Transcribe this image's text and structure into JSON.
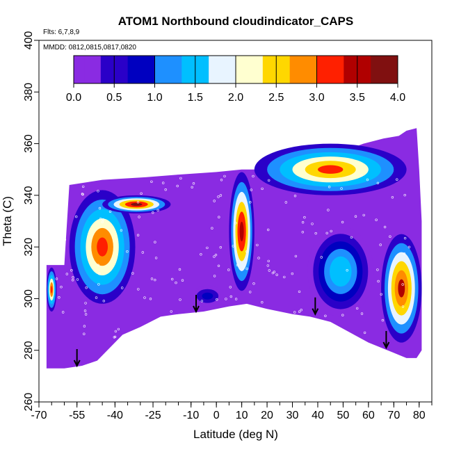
{
  "chart_data": {
    "type": "heatmap",
    "title": "ATOM1 Northbound cloudindicator_CAPS",
    "annotations": [
      "Flts: 6,7,8,9",
      "MMDD: 0812,0815,0817,0820"
    ],
    "xlabel": "Latitude (deg N)",
    "ylabel": "Theta (C)",
    "xlim": [
      -70,
      85
    ],
    "ylim": [
      260,
      400
    ],
    "x_ticks": [
      -70,
      -55,
      -40,
      -25,
      -10,
      0,
      10,
      20,
      30,
      40,
      50,
      60,
      70,
      80
    ],
    "x_tick_labels": [
      "-70",
      "-55",
      "-40",
      "-25",
      "-10",
      "0",
      "10",
      "20",
      "30",
      "40",
      "50",
      "60",
      "70",
      "80"
    ],
    "y_ticks": [
      260,
      280,
      300,
      320,
      340,
      360,
      380,
      400
    ],
    "y_tick_labels": [
      "260",
      "280",
      "300",
      "320",
      "340",
      "360",
      "380",
      "400"
    ],
    "colorbar": {
      "min": 0,
      "max": 4,
      "ticks": [
        0.0,
        0.5,
        1.0,
        1.5,
        2.0,
        2.5,
        3.0,
        3.5,
        4.0
      ],
      "tick_labels": [
        "0.0",
        "0.5",
        "1.0",
        "1.5",
        "2.0",
        "2.5",
        "3.0",
        "3.5",
        "4.0"
      ],
      "colors": [
        "#8a2be2",
        "#2a00c8",
        "#0000c0",
        "#1e90ff",
        "#00bfff",
        "#e8f4ff",
        "#ffffd0",
        "#ffd700",
        "#ff8c00",
        "#ff2000",
        "#b00000",
        "#801010"
      ]
    },
    "domain_outline": [
      [
        -67,
        273
      ],
      [
        -67,
        313
      ],
      [
        -60,
        313
      ],
      [
        -58,
        344
      ],
      [
        -45,
        346
      ],
      [
        -28,
        347
      ],
      [
        -15,
        348
      ],
      [
        0,
        349
      ],
      [
        10,
        350
      ],
      [
        20,
        350
      ],
      [
        30,
        350
      ],
      [
        40,
        353
      ],
      [
        50,
        357
      ],
      [
        58,
        360
      ],
      [
        66,
        362
      ],
      [
        72,
        363
      ],
      [
        75,
        365
      ],
      [
        79,
        366
      ],
      [
        80,
        350
      ],
      [
        81,
        330
      ],
      [
        81,
        300
      ],
      [
        81,
        280
      ],
      [
        79,
        277
      ],
      [
        75,
        277
      ],
      [
        70,
        279
      ],
      [
        60,
        283
      ],
      [
        45,
        291
      ],
      [
        37,
        293
      ],
      [
        30,
        294
      ],
      [
        20,
        296
      ],
      [
        12,
        298
      ],
      [
        5,
        297
      ],
      [
        -5,
        295
      ],
      [
        -15,
        294
      ],
      [
        -22,
        293
      ],
      [
        -30,
        289
      ],
      [
        -37,
        286
      ],
      [
        -47,
        276
      ],
      [
        -53,
        274
      ],
      [
        -60,
        273
      ]
    ],
    "features": [
      {
        "region": "band west edge",
        "x": [
          -67,
          -63
        ],
        "y": [
          295,
          312
        ],
        "peak_value": 3.3
      },
      {
        "region": "slanted cloud band",
        "x": [
          -58,
          -32
        ],
        "y": [
          298,
          342
        ],
        "peak_value": 3.2
      },
      {
        "region": "upper streak",
        "x": [
          -45,
          -18
        ],
        "y": [
          333,
          340
        ],
        "peak_value": 3.7
      },
      {
        "region": "tropical column",
        "x": [
          5,
          15
        ],
        "y": [
          303,
          349
        ],
        "peak_value": 3.6
      },
      {
        "region": "low patch",
        "x": [
          -10,
          3
        ],
        "y": [
          297,
          305
        ],
        "peak_value": 0.9
      },
      {
        "region": "upper ridge",
        "x": [
          15,
          75
        ],
        "y": [
          340,
          360
        ],
        "peak_value": 3.0
      },
      {
        "region": "mid-lat streak",
        "x": [
          36,
          62
        ],
        "y": [
          293,
          328
        ],
        "peak_value": 1.6
      },
      {
        "region": "high-lat column",
        "x": [
          65,
          81
        ],
        "y": [
          283,
          325
        ],
        "peak_value": 3.5
      }
    ],
    "arrows_at": [
      [
        -55,
        274
      ],
      [
        -8,
        295
      ],
      [
        39,
        294
      ],
      [
        67,
        281
      ]
    ]
  }
}
